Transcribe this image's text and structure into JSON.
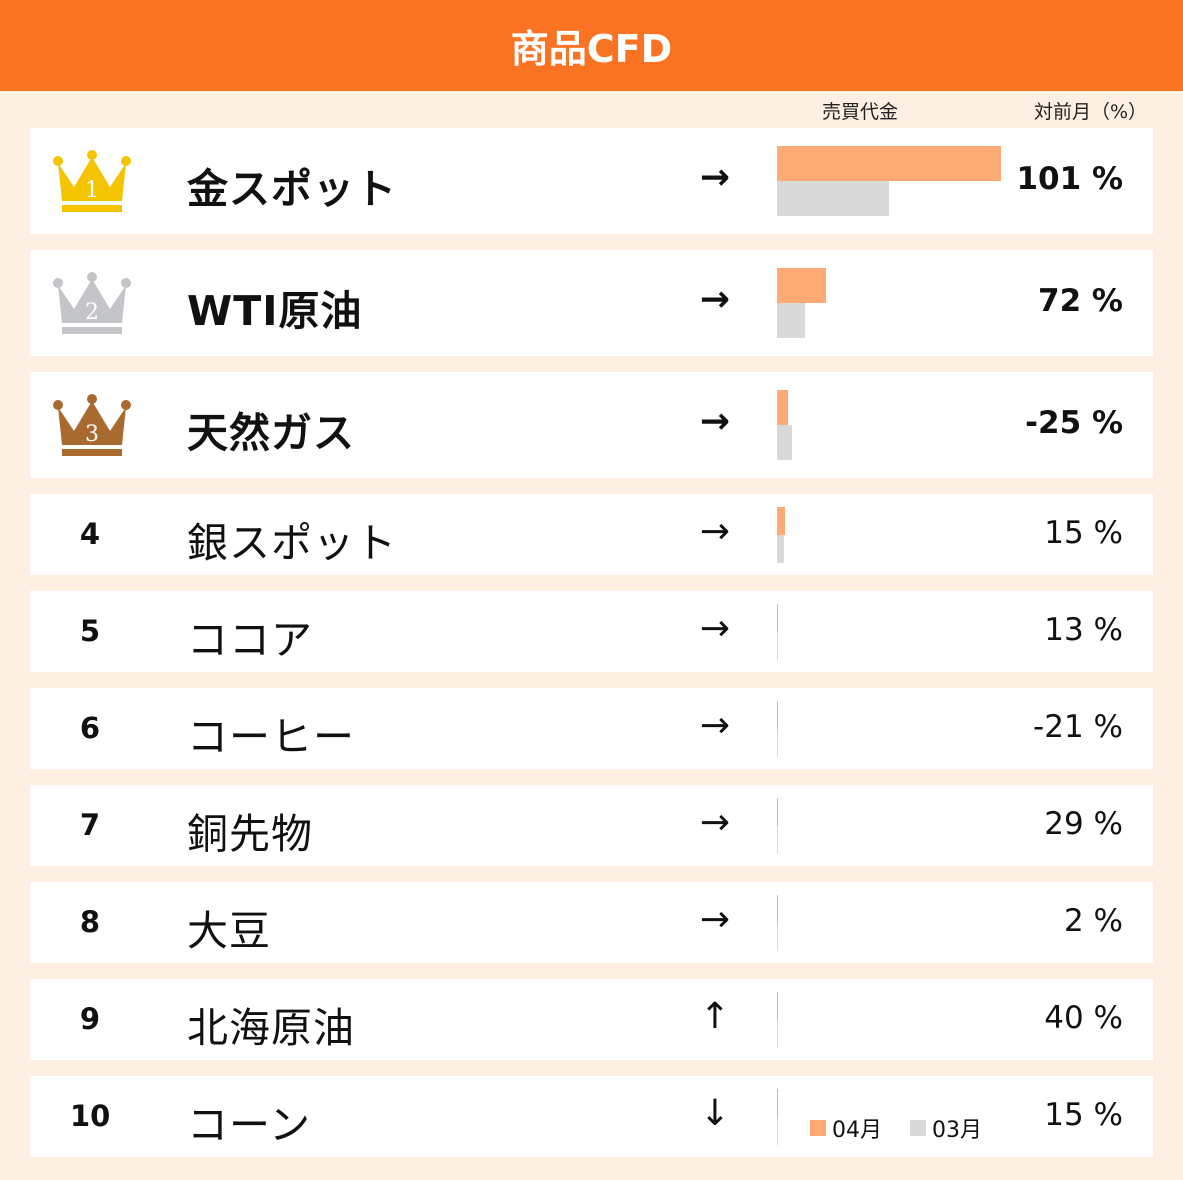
{
  "title": "商品CFD",
  "col_volume": "売買代金",
  "col_mom": "対前月（%）",
  "legend": [
    {
      "label": "04月",
      "color": "#fdaa74"
    },
    {
      "label": "03月",
      "color": "#d9d9d9"
    }
  ],
  "colors": {
    "header": "#fa7322",
    "background": "#fdf0e2",
    "gold": "#f5c400",
    "silver": "#c3c5c8",
    "bronze": "#a86a2e"
  },
  "chart_data": {
    "type": "bar",
    "title": "商品CFD",
    "x_label": "売買代金",
    "series": [
      {
        "name": "04月",
        "values": [
          1.0,
          0.22,
          0.05,
          0.035,
          0.004,
          0.004,
          0.004,
          0.004,
          0.004,
          0.004
        ]
      },
      {
        "name": "03月",
        "values": [
          0.5,
          0.125,
          0.065,
          0.03,
          0.004,
          0.004,
          0.004,
          0.004,
          0.004,
          0.004
        ]
      }
    ],
    "rows": [
      {
        "rank": "1",
        "name": "金スポット",
        "trend": "→",
        "trend_icon": "arrow-right-icon",
        "mom": "101 %",
        "crown": "gold"
      },
      {
        "rank": "2",
        "name": "WTI原油",
        "trend": "→",
        "trend_icon": "arrow-right-icon",
        "mom": "72 %",
        "crown": "silver"
      },
      {
        "rank": "3",
        "name": "天然ガス",
        "trend": "→",
        "trend_icon": "arrow-right-icon",
        "mom": "-25 %",
        "crown": "bronze"
      },
      {
        "rank": "4",
        "name": "銀スポット",
        "trend": "→",
        "trend_icon": "arrow-right-icon",
        "mom": "15 %"
      },
      {
        "rank": "5",
        "name": "ココア",
        "trend": "→",
        "trend_icon": "arrow-right-icon",
        "mom": "13 %"
      },
      {
        "rank": "6",
        "name": "コーヒー",
        "trend": "→",
        "trend_icon": "arrow-right-icon",
        "mom": "-21 %"
      },
      {
        "rank": "7",
        "name": "銅先物",
        "trend": "→",
        "trend_icon": "arrow-right-icon",
        "mom": "29 %"
      },
      {
        "rank": "8",
        "name": "大豆",
        "trend": "→",
        "trend_icon": "arrow-right-icon",
        "mom": "2 %"
      },
      {
        "rank": "9",
        "name": "北海原油",
        "trend": "↑",
        "trend_icon": "arrow-up-icon",
        "mom": "40 %"
      },
      {
        "rank": "10",
        "name": "コーン",
        "trend": "↓",
        "trend_icon": "arrow-down-icon",
        "mom": "15 %"
      }
    ]
  }
}
